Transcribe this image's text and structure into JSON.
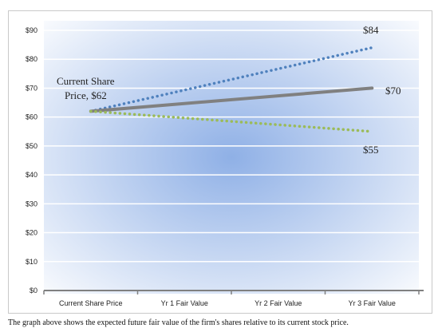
{
  "chart_data": {
    "type": "line",
    "categories": [
      "Current Share Price",
      "Yr 1 Fair Value",
      "Yr 2 Fair Value",
      "Yr 3 Fair Value"
    ],
    "ylim": [
      0,
      90
    ],
    "yticks": [
      0,
      10,
      20,
      30,
      40,
      50,
      60,
      70,
      80,
      90
    ],
    "ytick_labels": [
      "$0",
      "$10",
      "$20",
      "$30",
      "$40",
      "$50",
      "$60",
      "$70",
      "$80",
      "$90"
    ],
    "grid": true,
    "series": [
      {
        "values": [
          62,
          null,
          null,
          84
        ],
        "color": "#4f81bd",
        "style": "dotted",
        "line_width": "thick"
      },
      {
        "values": [
          62,
          null,
          null,
          70
        ],
        "color": "#808080",
        "style": "solid",
        "line_width": "thick"
      },
      {
        "values": [
          62,
          null,
          null,
          55
        ],
        "color": "#9bbb59",
        "style": "dotted",
        "line_width": "thick"
      }
    ],
    "annotations": {
      "current_price_line1": "Current Share",
      "current_price_line2": "Price, $62",
      "high": "$84",
      "mid": "$70",
      "low": "$55"
    }
  },
  "caption": "The graph above shows the expected future fair value of the firm's shares relative to its current stock price.",
  "colors": {
    "plot_center": "#8fb0e6",
    "plot_edge": "#ffffff",
    "gridline": "#ffffff",
    "axis": "#808080"
  }
}
